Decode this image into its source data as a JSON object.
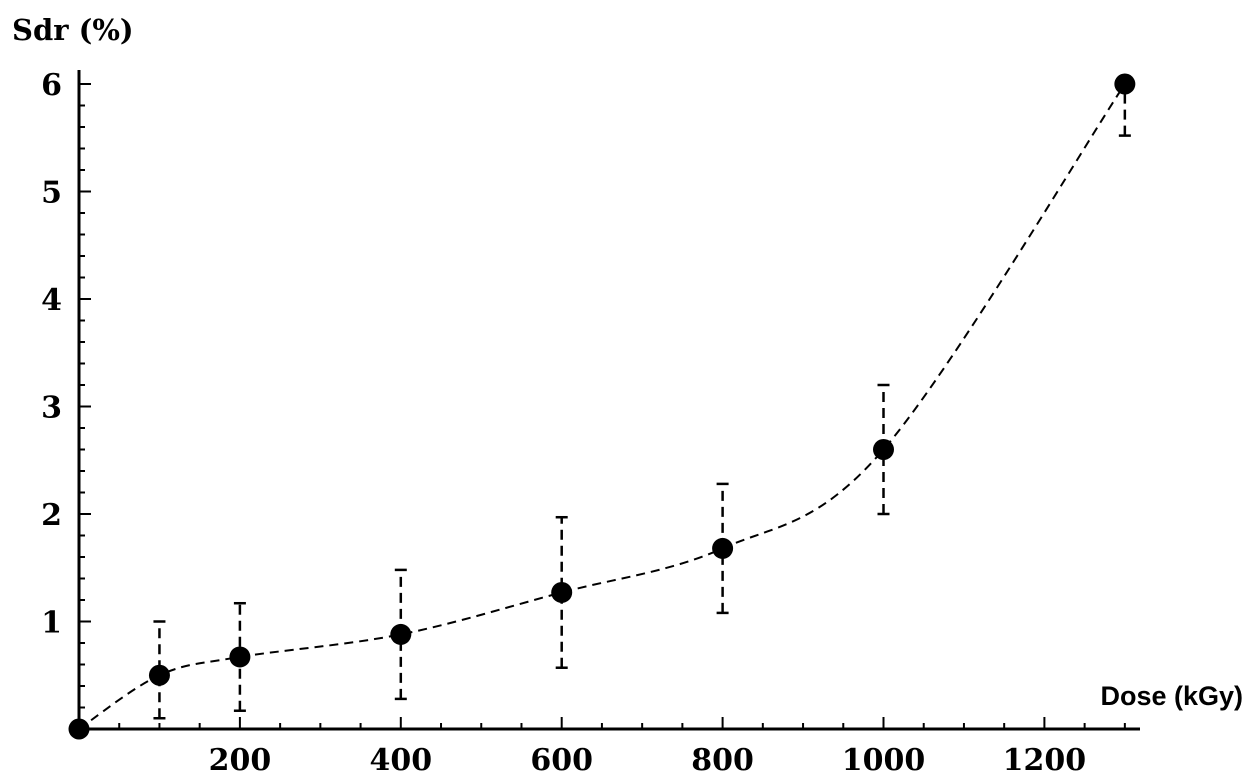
{
  "chart_data": {
    "type": "scatter",
    "title": "",
    "xlabel": "Dose (kGy)",
    "ylabel": "Sdr (%)",
    "xlim": [
      0,
      1320
    ],
    "ylim": [
      0,
      6.2
    ],
    "x_ticks": [
      "200",
      "400",
      "600",
      "800",
      "1000",
      "1200"
    ],
    "y_ticks": [
      "1",
      "2",
      "3",
      "4",
      "5",
      "6"
    ],
    "grid": false,
    "legend": "none",
    "series": [
      {
        "marker": "filled-circle",
        "line": "dashed",
        "color": "#000000",
        "points": [
          {
            "x": 0,
            "y": 0,
            "err_low": 0,
            "err_high": 0
          },
          {
            "x": 100,
            "y": 0.5,
            "err_low": 0.1,
            "err_high": 1.0
          },
          {
            "x": 200,
            "y": 0.67,
            "err_low": 0.17,
            "err_high": 1.17
          },
          {
            "x": 400,
            "y": 0.88,
            "err_low": 0.28,
            "err_high": 1.48
          },
          {
            "x": 600,
            "y": 1.27,
            "err_low": 0.57,
            "err_high": 1.97
          },
          {
            "x": 800,
            "y": 1.68,
            "err_low": 1.08,
            "err_high": 2.28
          },
          {
            "x": 1000,
            "y": 2.6,
            "err_low": 2.0,
            "err_high": 3.2
          },
          {
            "x": 1300,
            "y": 6.0,
            "err_low": 5.52,
            "err_high": 6.0
          }
        ]
      }
    ]
  }
}
